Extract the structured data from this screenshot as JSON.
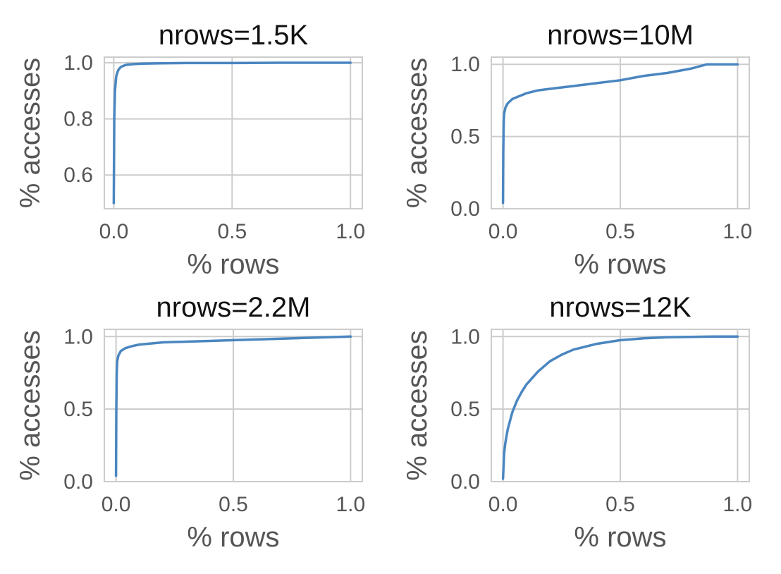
{
  "chart_data": [
    {
      "type": "line",
      "title": "nrows=1.5K",
      "xlabel": "% rows",
      "ylabel": "% accesses",
      "xlim": [
        -0.04,
        1.05
      ],
      "ylim": [
        0.48,
        1.02
      ],
      "xticks": [
        0.0,
        0.5,
        1.0
      ],
      "xtick_labels": [
        "0.0",
        "0.5",
        "1.0"
      ],
      "yticks": [
        0.6,
        0.8,
        1.0
      ],
      "ytick_labels": [
        "0.6",
        "0.8",
        "1.0"
      ],
      "grid": true,
      "color": "#4a86c0",
      "x": [
        0.0,
        0.002,
        0.005,
        0.01,
        0.015,
        0.02,
        0.03,
        0.05,
        0.08,
        0.12,
        0.2,
        0.3,
        0.5,
        0.7,
        1.0
      ],
      "y": [
        0.5,
        0.8,
        0.9,
        0.95,
        0.965,
        0.975,
        0.985,
        0.992,
        0.995,
        0.997,
        0.998,
        0.999,
        0.999,
        1.0,
        1.0
      ]
    },
    {
      "type": "line",
      "title": "nrows=10M",
      "xlabel": "% rows",
      "ylabel": "% accesses",
      "xlim": [
        -0.05,
        1.05
      ],
      "ylim": [
        0.0,
        1.05
      ],
      "xticks": [
        0.0,
        0.5,
        1.0
      ],
      "xtick_labels": [
        "0.0",
        "0.5",
        "1.0"
      ],
      "yticks": [
        0.0,
        0.5,
        1.0
      ],
      "ytick_labels": [
        "0.0",
        "0.5",
        "1.0"
      ],
      "grid": true,
      "color": "#4a86c0",
      "x": [
        0.0,
        0.001,
        0.003,
        0.005,
        0.01,
        0.02,
        0.04,
        0.07,
        0.1,
        0.15,
        0.2,
        0.3,
        0.4,
        0.5,
        0.6,
        0.7,
        0.8,
        0.87,
        0.9,
        1.0
      ],
      "y": [
        0.04,
        0.4,
        0.6,
        0.66,
        0.7,
        0.73,
        0.76,
        0.78,
        0.8,
        0.82,
        0.83,
        0.85,
        0.87,
        0.89,
        0.92,
        0.94,
        0.97,
        1.0,
        1.0,
        1.0
      ]
    },
    {
      "type": "line",
      "title": "nrows=2.2M",
      "xlabel": "% rows",
      "ylabel": "% accesses",
      "xlim": [
        -0.05,
        1.05
      ],
      "ylim": [
        0.0,
        1.05
      ],
      "xticks": [
        0.0,
        0.5,
        1.0
      ],
      "xtick_labels": [
        "0.0",
        "0.5",
        "1.0"
      ],
      "yticks": [
        0.0,
        0.5,
        1.0
      ],
      "ytick_labels": [
        "0.0",
        "0.5",
        "1.0"
      ],
      "grid": true,
      "color": "#4a86c0",
      "x": [
        0.0,
        0.001,
        0.003,
        0.005,
        0.01,
        0.02,
        0.04,
        0.07,
        0.1,
        0.2,
        0.3,
        0.4,
        0.5,
        0.6,
        0.7,
        0.8,
        0.9,
        1.0
      ],
      "y": [
        0.04,
        0.5,
        0.75,
        0.83,
        0.87,
        0.9,
        0.92,
        0.935,
        0.945,
        0.96,
        0.965,
        0.97,
        0.975,
        0.98,
        0.985,
        0.99,
        0.995,
        1.0
      ]
    },
    {
      "type": "line",
      "title": "nrows=12K",
      "xlabel": "% rows",
      "ylabel": "% accesses",
      "xlim": [
        -0.05,
        1.05
      ],
      "ylim": [
        0.0,
        1.05
      ],
      "xticks": [
        0.0,
        0.5,
        1.0
      ],
      "xtick_labels": [
        "0.0",
        "0.5",
        "1.0"
      ],
      "yticks": [
        0.0,
        0.5,
        1.0
      ],
      "ytick_labels": [
        "0.0",
        "0.5",
        "1.0"
      ],
      "grid": true,
      "color": "#4a86c0",
      "x": [
        0.0,
        0.005,
        0.01,
        0.02,
        0.04,
        0.06,
        0.08,
        0.1,
        0.15,
        0.2,
        0.25,
        0.3,
        0.4,
        0.5,
        0.6,
        0.7,
        0.8,
        0.9,
        1.0
      ],
      "y": [
        0.02,
        0.2,
        0.27,
        0.36,
        0.48,
        0.56,
        0.62,
        0.67,
        0.76,
        0.83,
        0.875,
        0.91,
        0.95,
        0.975,
        0.988,
        0.995,
        0.998,
        1.0,
        1.0
      ]
    }
  ]
}
